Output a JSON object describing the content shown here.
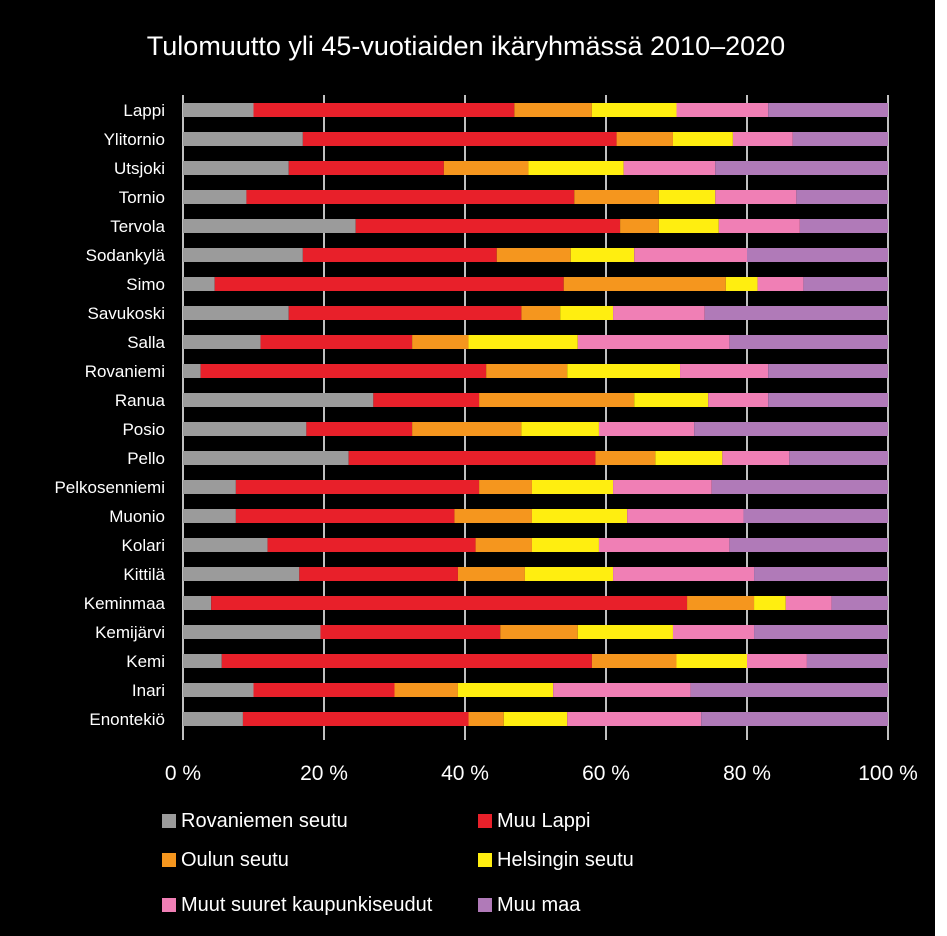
{
  "chart_data": {
    "type": "bar",
    "orientation": "horizontal",
    "stacked": "percent",
    "title": "Tulomuutto yli 45-vuotiaiden ikäryhmässä 2010–2020",
    "xlabel": "",
    "ylabel": "",
    "xlim": [
      0,
      100
    ],
    "x_ticks": [
      "0 %",
      "20 %",
      "40 %",
      "60 %",
      "80 %",
      "100 %"
    ],
    "grid": "vertical",
    "legend_position": "bottom",
    "categories": [
      "Lappi",
      "Ylitornio",
      "Utsjoki",
      "Tornio",
      "Tervola",
      "Sodankylä",
      "Simo",
      "Savukoski",
      "Salla",
      "Rovaniemi",
      "Ranua",
      "Posio",
      "Pello",
      "Pelkosenniemi",
      "Muonio",
      "Kolari",
      "Kittilä",
      "Keminmaa",
      "Kemijärvi",
      "Kemi",
      "Inari",
      "Enontekiö"
    ],
    "series": [
      {
        "name": "Rovaniemen seutu",
        "color": "#9b9b9b",
        "values": [
          10,
          17,
          15,
          9,
          24.5,
          17,
          4.5,
          15,
          11,
          2.5,
          27,
          17.5,
          23.5,
          7.5,
          7.5,
          12,
          16.5,
          4,
          19.5,
          5.5,
          10,
          8.5
        ]
      },
      {
        "name": "Muu Lappi",
        "color": "#e8202a",
        "values": [
          37,
          44.5,
          22,
          46.5,
          37.5,
          27.5,
          49.5,
          33,
          21.5,
          40.5,
          15,
          15,
          35,
          34.5,
          31,
          29.5,
          22.5,
          67.5,
          25.5,
          52.5,
          20,
          32
        ]
      },
      {
        "name": "Oulun seutu",
        "color": "#f5961e",
        "values": [
          11,
          8,
          12,
          12,
          5.5,
          10.5,
          23,
          5.5,
          8,
          11.5,
          22,
          15.5,
          8.5,
          7.5,
          11,
          8,
          9.5,
          9.5,
          11,
          12,
          9,
          5
        ]
      },
      {
        "name": "Helsingin seutu",
        "color": "#ffee10",
        "values": [
          12,
          8.5,
          13.5,
          8,
          8.5,
          9,
          4.5,
          7.5,
          15.5,
          16,
          10.5,
          11,
          9.5,
          11.5,
          13.5,
          9.5,
          12.5,
          4.5,
          13.5,
          10,
          13.5,
          9
        ]
      },
      {
        "name": "Muut suuret kaupunkiseudut",
        "color": "#f07fb5",
        "values": [
          13,
          8.5,
          13,
          11.5,
          11.5,
          16,
          6.5,
          13,
          21.5,
          12.5,
          8.5,
          13.5,
          9.5,
          14,
          16.5,
          18.5,
          20,
          6.5,
          11.5,
          8.5,
          19.5,
          19
        ]
      },
      {
        "name": "Muu maa",
        "color": "#b07ab8",
        "values": [
          17,
          13.5,
          24.5,
          13,
          12.5,
          20,
          12,
          26,
          22.5,
          17,
          17,
          27.5,
          14,
          25,
          20.5,
          22.5,
          19,
          8,
          19,
          11.5,
          28,
          26.5
        ]
      }
    ]
  }
}
